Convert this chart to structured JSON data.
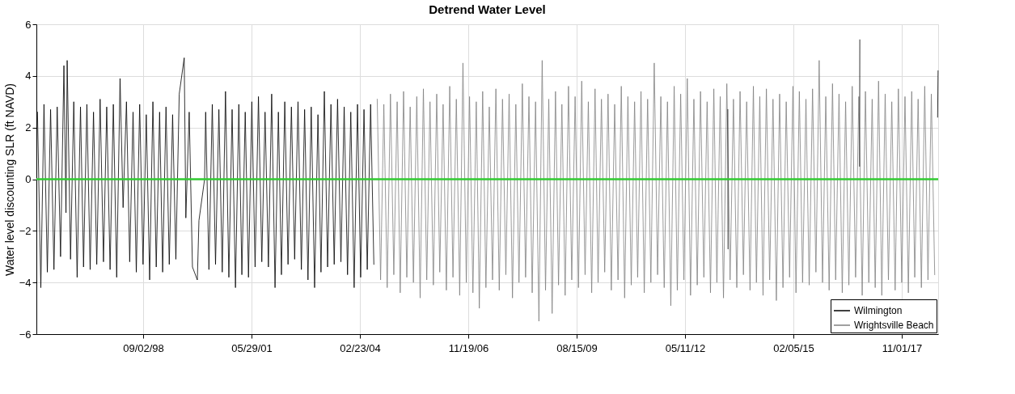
{
  "chart_data": {
    "type": "line",
    "title": "Detrend Water Level",
    "ylabel": "Water level discounting SLR (ft NAVD)",
    "xlim": [
      "1995-12-22",
      "2018-10-03"
    ],
    "ylim": [
      -6,
      6
    ],
    "yticks": [
      -6,
      -4,
      -2,
      0,
      2,
      4,
      6
    ],
    "xticks": [
      {
        "value": "1998-09-02",
        "label": "09/02/98"
      },
      {
        "value": "2001-05-29",
        "label": "05/29/01"
      },
      {
        "value": "2004-02-23",
        "label": "02/23/04"
      },
      {
        "value": "2006-11-19",
        "label": "11/19/06"
      },
      {
        "value": "2009-08-15",
        "label": "08/15/09"
      },
      {
        "value": "2012-05-11",
        "label": "05/11/12"
      },
      {
        "value": "2015-02-05",
        "label": "02/05/15"
      },
      {
        "value": "2017-11-01",
        "label": "11/01/17"
      }
    ],
    "grid": true,
    "legend": "bottom right",
    "line_style": "solid",
    "marker": "none",
    "ref_lines": [
      {
        "axis": "y",
        "value": 0,
        "color": "#33cc33"
      }
    ],
    "series": [
      {
        "name": "Wilmington",
        "color": "#000000",
        "x": [
          "1996-01",
          "1996-02",
          "1996-03",
          "1996-04",
          "1996-05",
          "1996-06",
          "1996-07",
          "1996-08",
          "1996-09-01",
          "1996-09-20",
          "1996-10-01",
          "1996-11",
          "1996-12",
          "1997-01",
          "1997-02",
          "1997-03",
          "1997-04",
          "1997-05",
          "1997-06",
          "1997-07",
          "1997-08",
          "1997-09",
          "1997-10",
          "1997-11",
          "1997-12",
          "1998-01",
          "1998-02",
          "1998-03",
          "1998-04",
          "1998-05",
          "1998-06",
          "1998-07",
          "1998-08",
          "1998-09",
          "1998-10",
          "1998-11",
          "1998-12",
          "1999-01",
          "1999-02",
          "1999-03",
          "1999-04",
          "1999-05",
          "1999-06",
          "1999-07",
          "1999-08",
          "1999-09-16",
          "1999-10",
          "1999-11",
          "1999-12",
          "2000-01-15",
          "2000-01-30",
          "2000-03-22",
          "2000-04",
          "2000-05",
          "2000-06",
          "2000-07",
          "2000-08",
          "2000-09",
          "2000-10",
          "2000-11",
          "2000-12",
          "2001-01",
          "2001-02",
          "2001-03",
          "2001-04",
          "2001-05",
          "2001-06",
          "2001-07",
          "2001-08",
          "2001-09",
          "2001-10",
          "2001-11",
          "2001-12",
          "2002-01",
          "2002-02",
          "2002-03",
          "2002-04",
          "2002-05",
          "2002-06",
          "2002-07",
          "2002-08",
          "2002-09",
          "2002-10",
          "2002-11",
          "2002-12",
          "2003-01",
          "2003-02",
          "2003-03",
          "2003-04",
          "2003-05",
          "2003-06",
          "2003-07",
          "2003-08",
          "2003-09",
          "2003-10",
          "2003-11",
          "2003-12",
          "2004-01",
          "2004-02",
          "2004-03",
          "2004-04",
          "2004-05",
          "2004-06",
          "2004-07",
          "2008-01",
          "2013-06-10",
          "2013-06-12",
          "2015-01",
          "2016-10-08",
          "2016-10-10",
          "2017-06",
          "2018-09-28",
          "2018-10-02"
        ],
        "values": [
          2.6,
          -4.2,
          2.9,
          -3.6,
          2.7,
          -3.5,
          2.8,
          -3.0,
          4.4,
          -1.3,
          4.6,
          -3.1,
          3.0,
          -3.8,
          2.8,
          -3.4,
          2.9,
          -3.5,
          2.6,
          -3.3,
          3.1,
          -3.2,
          2.8,
          -3.5,
          2.9,
          -3.8,
          3.9,
          -1.1,
          3.0,
          -3.2,
          2.6,
          -3.6,
          2.9,
          -3.3,
          2.5,
          -3.9,
          3.0,
          -3.4,
          2.6,
          -3.6,
          2.8,
          -3.3,
          2.5,
          -3.1,
          3.3,
          4.7,
          -1.5,
          2.6,
          -3.4,
          -3.9,
          -1.6,
          0.0,
          2.6,
          -3.5,
          2.9,
          -3.3,
          2.7,
          -3.6,
          3.4,
          -3.8,
          2.7,
          -4.2,
          2.9,
          -3.7,
          2.6,
          -3.8,
          3.0,
          -3.4,
          3.2,
          -3.2,
          2.6,
          -3.4,
          3.3,
          -4.2,
          2.6,
          -3.7,
          3.0,
          -3.3,
          2.8,
          -3.1,
          3.0,
          -3.5,
          2.7,
          -3.9,
          2.8,
          -4.2,
          2.5,
          -3.6,
          3.4,
          -3.4,
          2.9,
          -3.3,
          3.1,
          -3.2,
          2.8,
          -3.7,
          2.6,
          -4.2,
          2.9,
          -3.8,
          2.7,
          -3.5,
          2.9,
          -3.3,
          null,
          2.7,
          -2.7,
          null,
          0.5,
          5.4,
          null,
          2.4,
          4.2
        ]
      },
      {
        "name": "Wrightsville Beach",
        "color": "#808080",
        "x": [
          "2004-08",
          "2004-09",
          "2004-10",
          "2004-11",
          "2004-12",
          "2005-01",
          "2005-02",
          "2005-03",
          "2005-04",
          "2005-05",
          "2005-06",
          "2005-07",
          "2005-08",
          "2005-09",
          "2005-10",
          "2005-11",
          "2005-12",
          "2006-01",
          "2006-02",
          "2006-03",
          "2006-04",
          "2006-05",
          "2006-06",
          "2006-07",
          "2006-08",
          "2006-09",
          "2006-10",
          "2006-11",
          "2006-12",
          "2007-01",
          "2007-02",
          "2007-03",
          "2007-04",
          "2007-05",
          "2007-06",
          "2007-07",
          "2007-08",
          "2007-09",
          "2007-10",
          "2007-11",
          "2007-12",
          "2008-01",
          "2008-02",
          "2008-03",
          "2008-04",
          "2008-05",
          "2008-06",
          "2008-07",
          "2008-08",
          "2008-09",
          "2008-10",
          "2008-11",
          "2008-12",
          "2009-01",
          "2009-02",
          "2009-03",
          "2009-04",
          "2009-05",
          "2009-06",
          "2009-07",
          "2009-08",
          "2009-09",
          "2009-10",
          "2009-11",
          "2009-12",
          "2010-01",
          "2010-02",
          "2010-03",
          "2010-04",
          "2010-05",
          "2010-06",
          "2010-07",
          "2010-08",
          "2010-09",
          "2010-10",
          "2010-11",
          "2010-12",
          "2011-01",
          "2011-02",
          "2011-03",
          "2011-04",
          "2011-05",
          "2011-06",
          "2011-07",
          "2011-08",
          "2011-09",
          "2011-10",
          "2011-11",
          "2011-12",
          "2012-01",
          "2012-02",
          "2012-03",
          "2012-04",
          "2012-05",
          "2012-06",
          "2012-07",
          "2012-08",
          "2012-09",
          "2012-10",
          "2012-11",
          "2012-12",
          "2013-01",
          "2013-02",
          "2013-03",
          "2013-04",
          "2013-05",
          "2013-06",
          "2013-07",
          "2013-08",
          "2013-09",
          "2013-10",
          "2013-11",
          "2013-12",
          "2014-01",
          "2014-02",
          "2014-03",
          "2014-04",
          "2014-05",
          "2014-06",
          "2014-07",
          "2014-08",
          "2014-09",
          "2014-10",
          "2014-11",
          "2014-12",
          "2015-01",
          "2015-02",
          "2015-03",
          "2015-04",
          "2015-05",
          "2015-06",
          "2015-07",
          "2015-08",
          "2015-09",
          "2015-10",
          "2015-11",
          "2015-12",
          "2016-01",
          "2016-02",
          "2016-03",
          "2016-04",
          "2016-05",
          "2016-06",
          "2016-07",
          "2016-08",
          "2016-09",
          "2016-10",
          "2016-11",
          "2016-12",
          "2017-01",
          "2017-02",
          "2017-03",
          "2017-04",
          "2017-05",
          "2017-06",
          "2017-07",
          "2017-08",
          "2017-09",
          "2017-10",
          "2017-11",
          "2017-12",
          "2018-01",
          "2018-02",
          "2018-03",
          "2018-04",
          "2018-05",
          "2018-06",
          "2018-07",
          "2018-08",
          "2018-09"
        ],
        "values": [
          3.1,
          -3.9,
          2.9,
          -4.2,
          3.3,
          -3.7,
          3.0,
          -4.4,
          3.4,
          -3.8,
          2.8,
          -4.0,
          3.2,
          -4.6,
          3.5,
          -3.9,
          3.0,
          -4.1,
          3.3,
          -3.6,
          2.9,
          -4.3,
          3.6,
          -3.8,
          3.1,
          -4.5,
          4.5,
          -4.0,
          3.2,
          -4.4,
          3.0,
          -5.0,
          3.4,
          -4.2,
          2.8,
          -3.9,
          3.5,
          -4.3,
          3.1,
          -3.7,
          3.3,
          -4.6,
          2.9,
          -4.0,
          3.7,
          -3.8,
          3.2,
          -4.4,
          3.0,
          -5.5,
          4.6,
          -4.3,
          3.1,
          -5.2,
          3.4,
          -4.1,
          2.9,
          -4.5,
          3.6,
          -3.9,
          3.2,
          -4.2,
          3.8,
          -3.7,
          3.0,
          -4.4,
          3.5,
          -4.0,
          3.1,
          -3.6,
          3.3,
          -4.3,
          2.9,
          -3.9,
          3.6,
          -4.6,
          3.2,
          -4.1,
          3.0,
          -3.8,
          3.4,
          -4.4,
          3.1,
          -4.0,
          4.5,
          -3.7,
          3.2,
          -4.2,
          3.0,
          -4.9,
          3.6,
          -4.3,
          3.3,
          -3.9,
          3.9,
          -4.5,
          3.1,
          -4.1,
          3.4,
          -3.8,
          3.0,
          -4.4,
          3.5,
          -4.0,
          3.2,
          -4.6,
          3.7,
          -3.9,
          3.1,
          -4.2,
          3.4,
          -3.7,
          3.0,
          -4.3,
          3.6,
          -4.0,
          3.2,
          -4.5,
          3.5,
          -3.9,
          3.1,
          -4.7,
          3.3,
          -4.2,
          3.0,
          -3.8,
          3.6,
          -4.4,
          3.4,
          -4.0,
          3.1,
          -4.1,
          3.5,
          -3.6,
          4.6,
          -4.0,
          3.2,
          -4.3,
          3.7,
          -3.9,
          3.3,
          -4.4,
          3.0,
          -4.1,
          3.6,
          -3.8,
          3.2,
          -4.5,
          3.4,
          -4.0,
          3.1,
          -4.2,
          3.8,
          -4.5,
          3.3,
          -3.9,
          3.0,
          -4.3,
          3.5,
          -4.0,
          3.2,
          -4.4,
          3.4,
          -3.8,
          3.1,
          -4.2,
          3.6,
          -3.9,
          3.3,
          -3.7
        ]
      }
    ]
  }
}
